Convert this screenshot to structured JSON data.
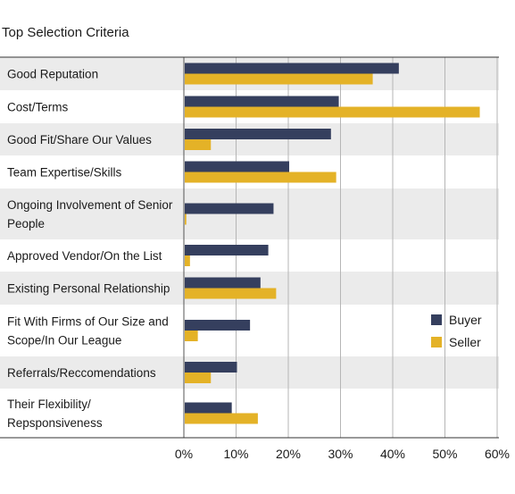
{
  "chart_data": {
    "type": "bar",
    "orientation": "horizontal",
    "title": "Top Selection Criteria",
    "categories": [
      "Good Reputation",
      "Cost/Terms",
      "Good Fit/Share Our Values",
      "Team Expertise/Skills",
      "Ongoing Involvement of Senior People",
      "Approved Vendor/On the List",
      "Existing Personal Relationship",
      "Fit With Firms of Our Size and Scope/In Our League",
      "Referrals/Reccomendations",
      "Their Flexibility/ Repsponsiveness"
    ],
    "category_lines": [
      [
        "Good Reputation"
      ],
      [
        "Cost/Terms"
      ],
      [
        "Good Fit/Share Our Values"
      ],
      [
        "Team Expertise/Skills"
      ],
      [
        "Ongoing Involvement of Senior",
        "People"
      ],
      [
        "Approved Vendor/On the List"
      ],
      [
        "Existing Personal Relationship"
      ],
      [
        "Fit With Firms of Our Size and",
        "Scope/In Our League"
      ],
      [
        "Referrals/Reccomendations"
      ],
      [
        "Their Flexibility/",
        "Repsponsiveness"
      ]
    ],
    "series": [
      {
        "name": "Buyer",
        "color": "#353f5e",
        "values": [
          41,
          29.5,
          28,
          20,
          17,
          16,
          14.5,
          12.5,
          10,
          9
        ]
      },
      {
        "name": "Seller",
        "color": "#e4b227",
        "values": [
          36,
          56.5,
          5,
          29,
          0.3,
          1,
          17.5,
          2.5,
          5,
          14
        ]
      }
    ],
    "xlim": [
      0,
      60
    ],
    "ticks": [
      "0%",
      "10%",
      "20%",
      "30%",
      "40%",
      "50%",
      "60%"
    ],
    "grid": true,
    "legend_position": "right"
  }
}
